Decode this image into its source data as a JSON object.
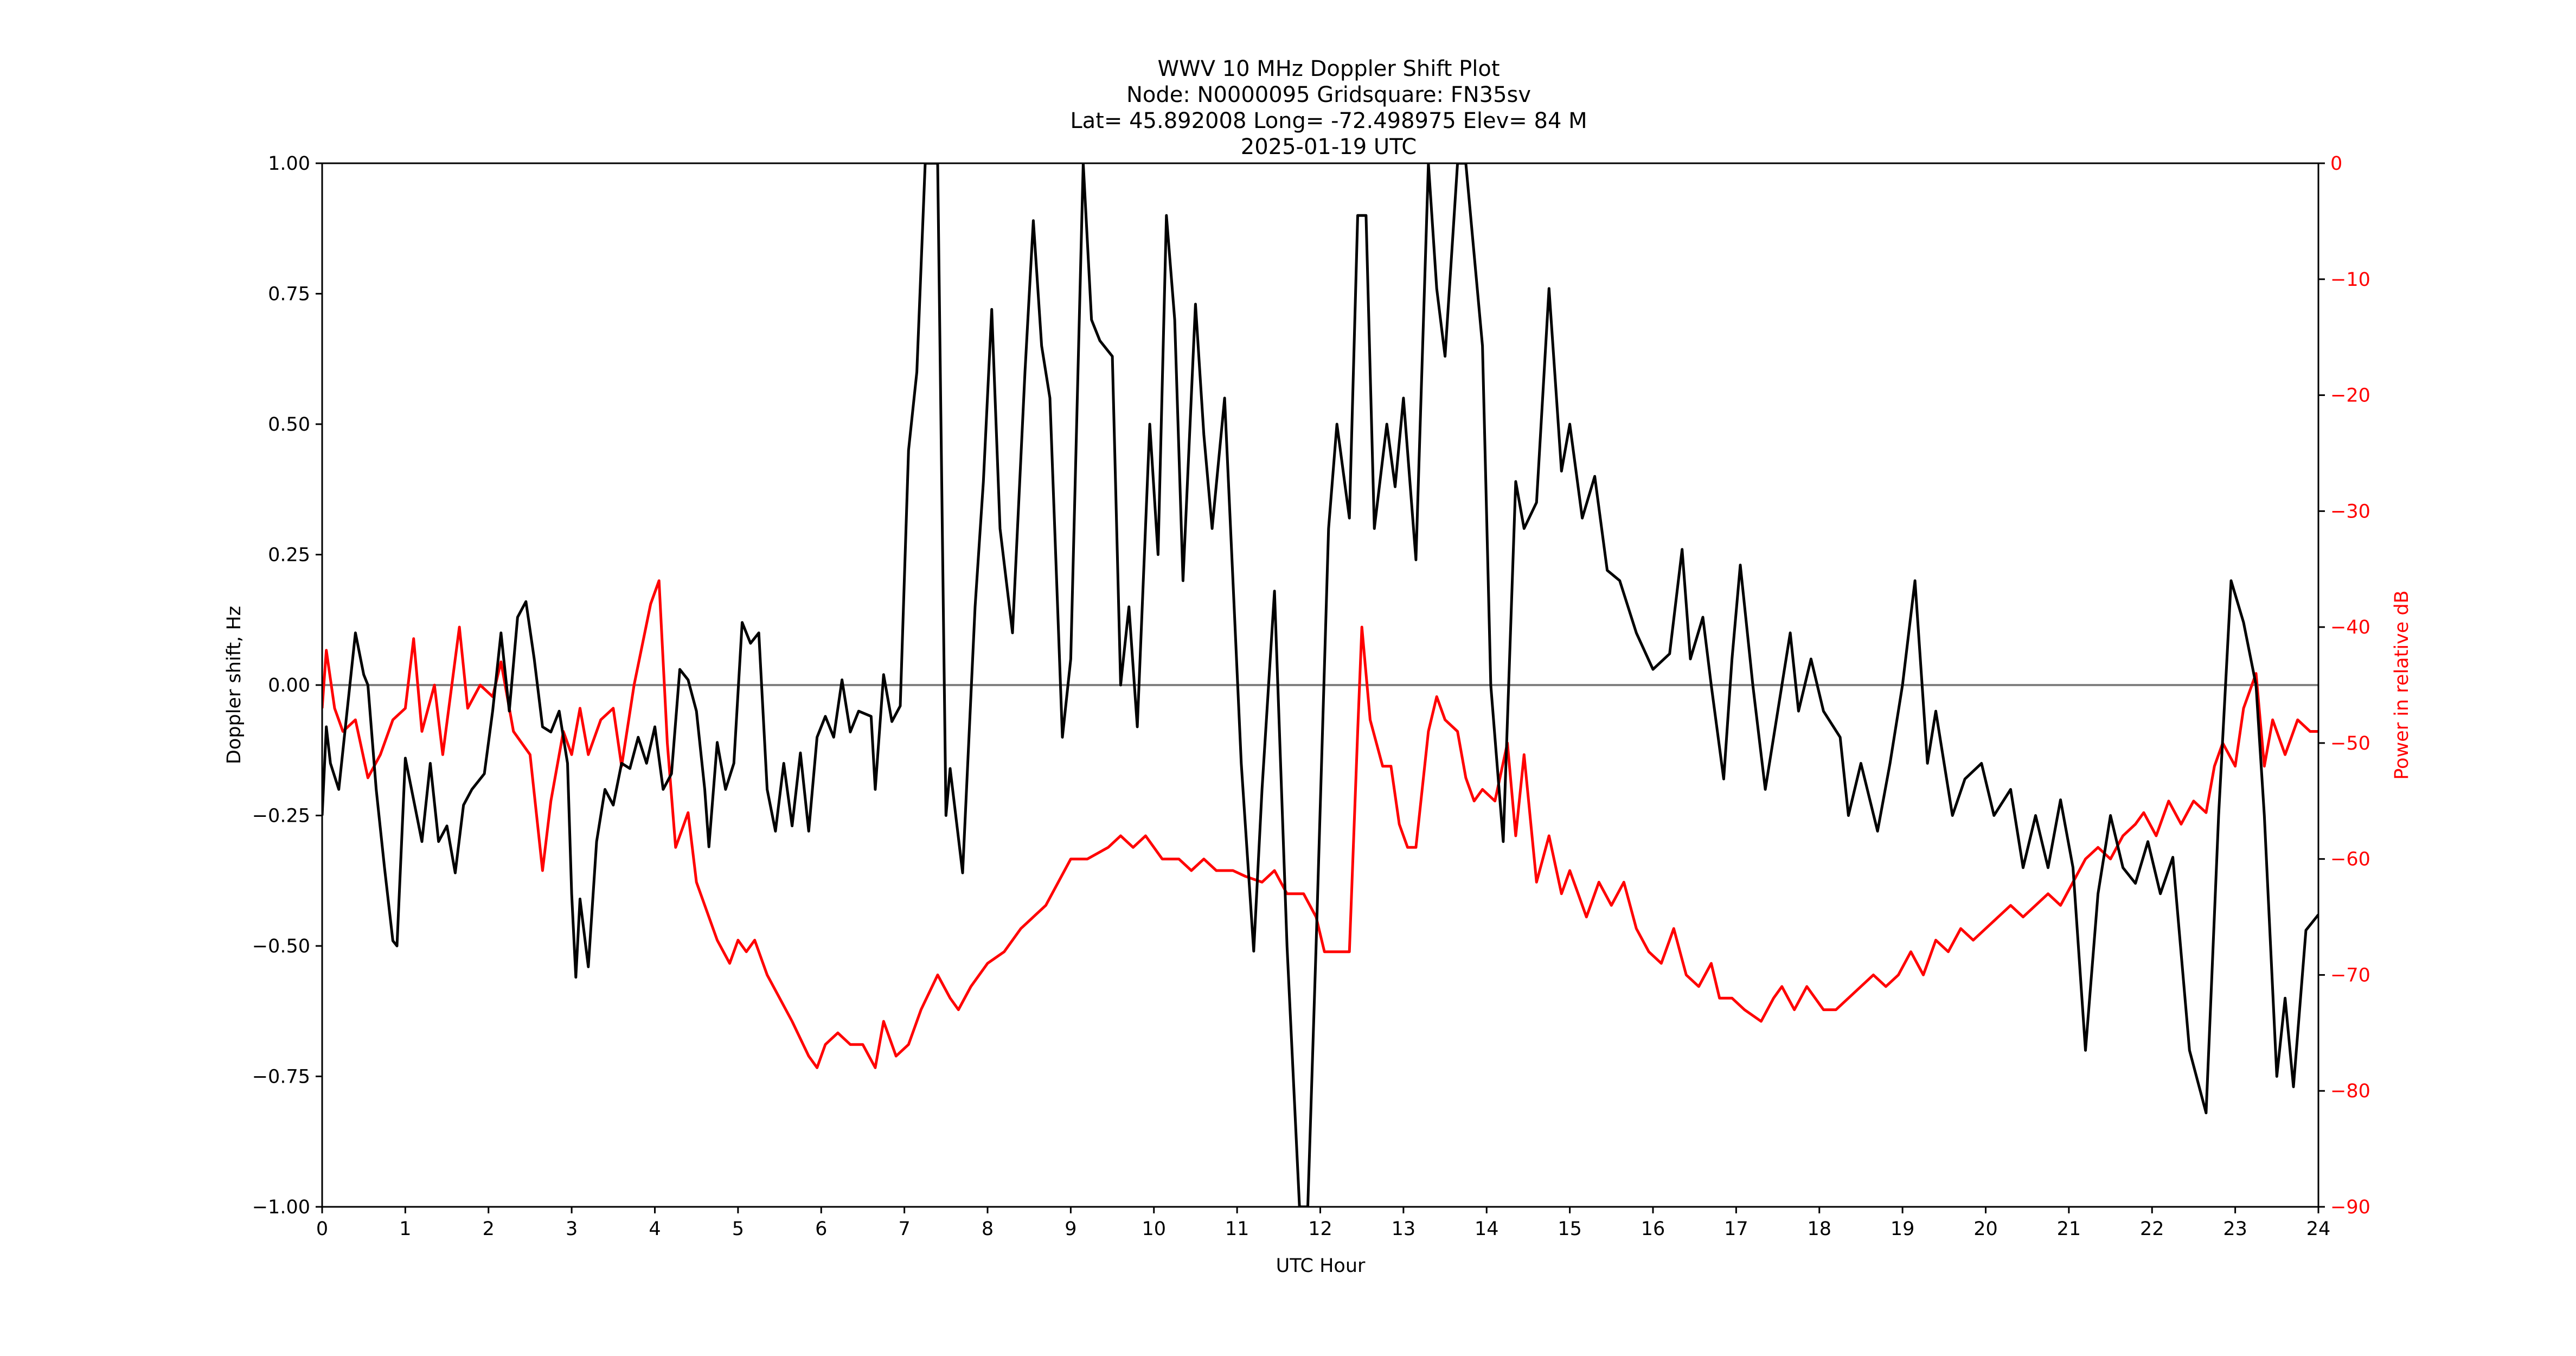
{
  "chart_data": {
    "type": "line",
    "title_lines": [
      "WWV 10 MHz Doppler Shift Plot",
      "Node:  N0000095     Gridsquare:  FN35sv",
      "Lat= 45.892008    Long= -72.498975    Elev= 84 M",
      "2025-01-19  UTC"
    ],
    "xlabel": "UTC Hour",
    "ylabel": "Doppler shift, Hz",
    "ylabel_right": "Power in relative dB",
    "xlim": [
      0,
      24
    ],
    "ylim": [
      -1.0,
      1.0
    ],
    "ylim_right": [
      -90,
      0
    ],
    "x_ticks": [
      0,
      1,
      2,
      3,
      4,
      5,
      6,
      7,
      8,
      9,
      10,
      11,
      12,
      13,
      14,
      15,
      16,
      17,
      18,
      19,
      20,
      21,
      22,
      23,
      24
    ],
    "y_ticks": [
      "1.00",
      "0.75",
      "0.50",
      "0.25",
      "0.00",
      "−0.25",
      "−0.50",
      "−0.75",
      "−1.00"
    ],
    "y_tick_values": [
      1.0,
      0.75,
      0.5,
      0.25,
      0.0,
      -0.25,
      -0.5,
      -0.75,
      -1.0
    ],
    "y_right_ticks": [
      "0",
      "−10",
      "−20",
      "−30",
      "−40",
      "−50",
      "−60",
      "−70",
      "−80",
      "−90"
    ],
    "y_right_tick_values": [
      0,
      -10,
      -20,
      -30,
      -40,
      -50,
      -60,
      -70,
      -80,
      -90
    ],
    "grid": false,
    "zero_line": {
      "y": 0.0,
      "color": "#808080"
    },
    "legend": null,
    "colors": {
      "doppler": "#000000",
      "power": "#ff0000",
      "right_axis_text": "#ff0000"
    },
    "series": [
      {
        "name": "Doppler shift, Hz",
        "axis": "left",
        "color": "#000000",
        "x": [
          0.0,
          0.05,
          0.1,
          0.2,
          0.3,
          0.4,
          0.5,
          0.55,
          0.65,
          0.75,
          0.85,
          0.9,
          1.0,
          1.1,
          1.2,
          1.3,
          1.4,
          1.5,
          1.6,
          1.7,
          1.8,
          1.95,
          2.05,
          2.15,
          2.25,
          2.35,
          2.45,
          2.55,
          2.65,
          2.75,
          2.85,
          2.95,
          3.0,
          3.05,
          3.1,
          3.2,
          3.3,
          3.4,
          3.5,
          3.6,
          3.7,
          3.8,
          3.9,
          4.0,
          4.1,
          4.2,
          4.3,
          4.4,
          4.5,
          4.6,
          4.65,
          4.75,
          4.85,
          4.95,
          5.05,
          5.15,
          5.25,
          5.35,
          5.45,
          5.55,
          5.65,
          5.75,
          5.85,
          5.95,
          6.05,
          6.15,
          6.25,
          6.35,
          6.45,
          6.6,
          6.65,
          6.75,
          6.85,
          6.95,
          7.05,
          7.15,
          7.25,
          7.4,
          7.5,
          7.55,
          7.7,
          7.85,
          7.95,
          8.05,
          8.15,
          8.3,
          8.45,
          8.55,
          8.65,
          8.75,
          8.9,
          9.0,
          9.15,
          9.25,
          9.35,
          9.5,
          9.6,
          9.7,
          9.8,
          9.95,
          10.05,
          10.15,
          10.25,
          10.35,
          10.5,
          10.6,
          10.7,
          10.85,
          10.95,
          11.05,
          11.2,
          11.3,
          11.45,
          11.6,
          11.75,
          11.85,
          11.95,
          12.1,
          12.2,
          12.35,
          12.45,
          12.55,
          12.65,
          12.8,
          12.9,
          13.0,
          13.15,
          13.3,
          13.4,
          13.5,
          13.65,
          13.75,
          13.95,
          14.05,
          14.2,
          14.35,
          14.45,
          14.6,
          14.75,
          14.9,
          15.0,
          15.15,
          15.3,
          15.45,
          15.6,
          15.8,
          16.0,
          16.2,
          16.35,
          16.45,
          16.6,
          16.7,
          16.85,
          16.95,
          17.05,
          17.2,
          17.35,
          17.5,
          17.65,
          17.75,
          17.9,
          18.05,
          18.25,
          18.35,
          18.5,
          18.7,
          18.85,
          19.0,
          19.15,
          19.3,
          19.4,
          19.6,
          19.75,
          19.95,
          20.1,
          20.3,
          20.45,
          20.6,
          20.75,
          20.9,
          21.05,
          21.2,
          21.35,
          21.5,
          21.65,
          21.8,
          21.95,
          22.1,
          22.25,
          22.45,
          22.65,
          22.8,
          22.95,
          23.1,
          23.25,
          23.35,
          23.5,
          23.6,
          23.7,
          23.85,
          24.0
        ],
        "values": [
          -0.25,
          -0.08,
          -0.15,
          -0.2,
          -0.05,
          0.1,
          0.02,
          0.0,
          -0.2,
          -0.35,
          -0.49,
          -0.5,
          -0.14,
          -0.22,
          -0.3,
          -0.15,
          -0.3,
          -0.27,
          -0.36,
          -0.23,
          -0.2,
          -0.17,
          -0.05,
          0.1,
          -0.05,
          0.13,
          0.16,
          0.05,
          -0.08,
          -0.09,
          -0.05,
          -0.15,
          -0.4,
          -0.56,
          -0.41,
          -0.54,
          -0.3,
          -0.2,
          -0.23,
          -0.15,
          -0.16,
          -0.1,
          -0.15,
          -0.08,
          -0.2,
          -0.17,
          0.03,
          0.01,
          -0.05,
          -0.2,
          -0.31,
          -0.11,
          -0.2,
          -0.15,
          0.12,
          0.08,
          0.1,
          -0.2,
          -0.28,
          -0.15,
          -0.27,
          -0.13,
          -0.28,
          -0.1,
          -0.06,
          -0.1,
          0.01,
          -0.09,
          -0.05,
          -0.06,
          -0.2,
          0.02,
          -0.07,
          -0.04,
          0.45,
          0.6,
          1.0,
          1.0,
          -0.25,
          -0.16,
          -0.36,
          0.15,
          0.39,
          0.72,
          0.3,
          0.1,
          0.6,
          0.89,
          0.65,
          0.55,
          -0.1,
          0.05,
          1.0,
          0.7,
          0.66,
          0.63,
          0.0,
          0.15,
          -0.08,
          0.5,
          0.25,
          0.9,
          0.7,
          0.2,
          0.73,
          0.48,
          0.3,
          0.55,
          0.2,
          -0.15,
          -0.51,
          -0.2,
          0.18,
          -0.5,
          -1.0,
          -1.0,
          -0.5,
          0.3,
          0.5,
          0.32,
          0.9,
          0.9,
          0.3,
          0.5,
          0.38,
          0.55,
          0.24,
          1.0,
          0.76,
          0.63,
          1.0,
          1.0,
          0.65,
          0.0,
          -0.3,
          0.39,
          0.3,
          0.35,
          0.76,
          0.41,
          0.5,
          0.32,
          0.4,
          0.22,
          0.2,
          0.1,
          0.03,
          0.06,
          0.26,
          0.05,
          0.13,
          0.0,
          -0.18,
          0.05,
          0.23,
          0.0,
          -0.2,
          -0.05,
          0.1,
          -0.05,
          0.05,
          -0.05,
          -0.1,
          -0.25,
          -0.15,
          -0.28,
          -0.15,
          0.0,
          0.2,
          -0.15,
          -0.05,
          -0.25,
          -0.18,
          -0.15,
          -0.25,
          -0.2,
          -0.35,
          -0.25,
          -0.35,
          -0.22,
          -0.35,
          -0.7,
          -0.4,
          -0.25,
          -0.35,
          -0.38,
          -0.3,
          -0.4,
          -0.33,
          -0.7,
          -0.82,
          -0.25,
          0.2,
          0.12,
          0.0,
          -0.25,
          -0.75,
          -0.6,
          -0.77,
          -0.47,
          -0.44
        ]
      },
      {
        "name": "Power in relative dB",
        "axis": "right",
        "color": "#ff0000",
        "x": [
          0.0,
          0.05,
          0.15,
          0.25,
          0.4,
          0.55,
          0.7,
          0.85,
          1.0,
          1.1,
          1.2,
          1.35,
          1.45,
          1.65,
          1.75,
          1.9,
          2.05,
          2.15,
          2.3,
          2.5,
          2.65,
          2.75,
          2.9,
          3.0,
          3.1,
          3.2,
          3.35,
          3.5,
          3.6,
          3.75,
          3.95,
          4.05,
          4.15,
          4.25,
          4.4,
          4.5,
          4.75,
          4.9,
          5.0,
          5.1,
          5.2,
          5.35,
          5.5,
          5.65,
          5.85,
          5.95,
          6.05,
          6.2,
          6.35,
          6.5,
          6.65,
          6.75,
          6.9,
          7.05,
          7.2,
          7.4,
          7.55,
          7.65,
          7.8,
          8.0,
          8.2,
          8.4,
          8.55,
          8.7,
          8.85,
          9.0,
          9.2,
          9.45,
          9.6,
          9.75,
          9.9,
          10.1,
          10.3,
          10.45,
          10.6,
          10.75,
          10.95,
          11.1,
          11.3,
          11.45,
          11.6,
          11.8,
          11.95,
          12.05,
          12.25,
          12.35,
          12.45,
          12.5,
          12.6,
          12.75,
          12.85,
          12.95,
          13.05,
          13.15,
          13.3,
          13.4,
          13.5,
          13.65,
          13.75,
          13.85,
          13.95,
          14.1,
          14.25,
          14.35,
          14.45,
          14.6,
          14.75,
          14.9,
          15.0,
          15.1,
          15.2,
          15.35,
          15.5,
          15.65,
          15.8,
          15.95,
          16.1,
          16.25,
          16.4,
          16.55,
          16.7,
          16.8,
          16.95,
          17.1,
          17.3,
          17.45,
          17.55,
          17.7,
          17.85,
          18.05,
          18.2,
          18.35,
          18.5,
          18.65,
          18.8,
          18.95,
          19.1,
          19.25,
          19.4,
          19.55,
          19.7,
          19.85,
          20.0,
          20.15,
          20.3,
          20.45,
          20.6,
          20.75,
          20.9,
          21.05,
          21.2,
          21.35,
          21.5,
          21.65,
          21.8,
          21.9,
          22.05,
          22.2,
          22.35,
          22.5,
          22.65,
          22.75,
          22.85,
          23.0,
          23.1,
          23.25,
          23.35,
          23.45,
          23.6,
          23.75,
          23.9,
          24.0
        ],
        "values": [
          -47,
          -42,
          -47,
          -49,
          -48,
          -53,
          -51,
          -48,
          -47,
          -41,
          -49,
          -45,
          -51,
          -40,
          -47,
          -45,
          -46,
          -43,
          -49,
          -51,
          -61,
          -55,
          -49,
          -51,
          -47,
          -51,
          -48,
          -47,
          -52,
          -45,
          -38,
          -36,
          -50,
          -59,
          -56,
          -62,
          -67,
          -69,
          -67,
          -68,
          -67,
          -70,
          -72,
          -74,
          -77,
          -78,
          -76,
          -75,
          -76,
          -76,
          -78,
          -74,
          -77,
          -76,
          -73,
          -70,
          -72,
          -73,
          -71,
          -69,
          -68,
          -66,
          -65,
          -64,
          -62,
          -60,
          -60,
          -59,
          -58,
          -59,
          -58,
          -60,
          -60,
          -61,
          -60,
          -61,
          -61,
          -61.5,
          -62,
          -61,
          -63,
          -63,
          -65,
          -68,
          -68,
          -68,
          -49,
          -40,
          -48,
          -52,
          -52,
          -57,
          -59,
          -59,
          -49,
          -46,
          -48,
          -49,
          -53,
          -55,
          -54,
          -55,
          -50,
          -58,
          -51,
          -62,
          -58,
          -63,
          -61,
          -63,
          -65,
          -62,
          -64,
          -62,
          -66,
          -68,
          -69,
          -66,
          -70,
          -71,
          -69,
          -72,
          -72,
          -73,
          -74,
          -72,
          -71,
          -73,
          -71,
          -73,
          -73,
          -72,
          -71,
          -70,
          -71,
          -70,
          -68,
          -70,
          -67,
          -68,
          -66,
          -67,
          -66,
          -65,
          -64,
          -65,
          -64,
          -63,
          -64,
          -62,
          -60,
          -59,
          -60,
          -58,
          -57,
          -56,
          -58,
          -55,
          -57,
          -55,
          -56,
          -52,
          -50,
          -52,
          -47,
          -44,
          -52,
          -48,
          -51,
          -48,
          -49,
          -49
        ]
      }
    ]
  }
}
